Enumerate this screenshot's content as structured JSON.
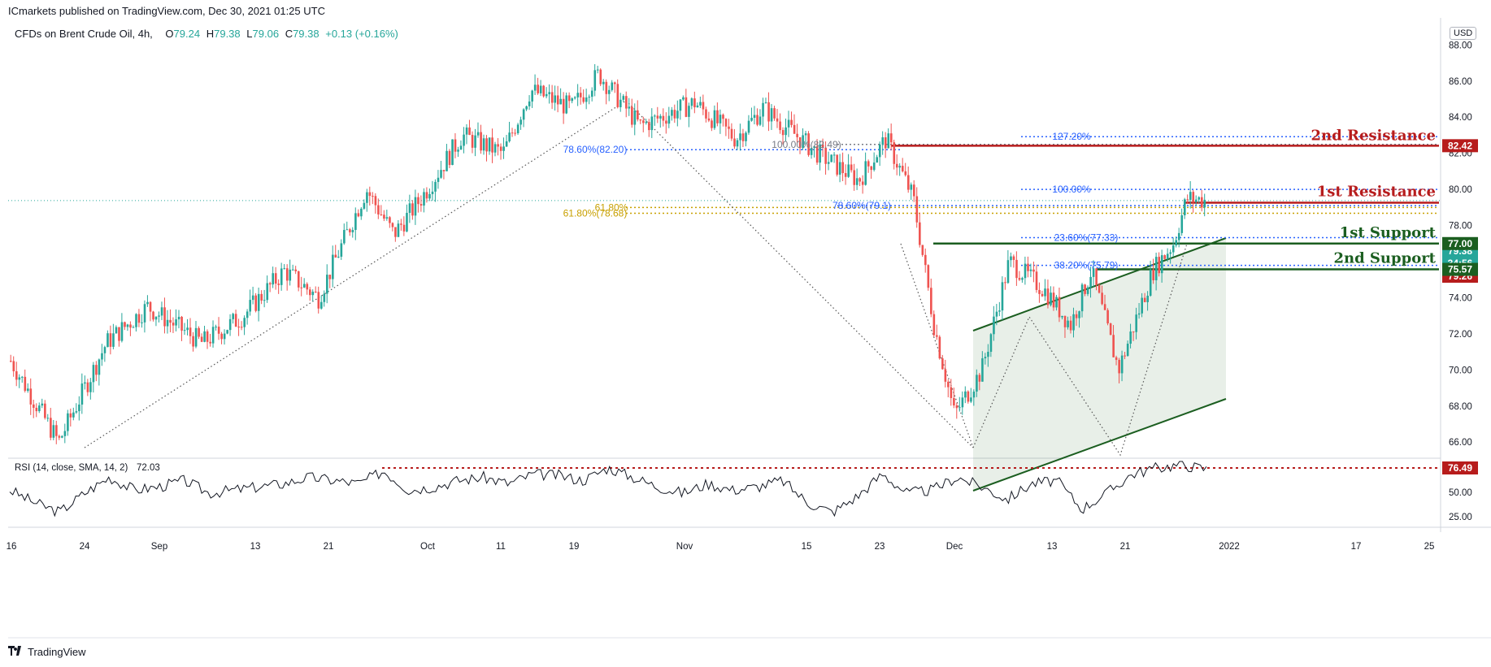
{
  "publisher": "ICmarkets published on TradingView.com, Dec 30, 2021 01:25 UTC",
  "legend": {
    "symbol": "CFDs on Brent Crude Oil, 4h,",
    "o": "79.24",
    "h": "79.38",
    "l": "79.06",
    "c": "79.38",
    "change": "+0.13 (+0.16%)"
  },
  "currency": "USD",
  "footer": "TradingView",
  "colors": {
    "up": "#26a69a",
    "down": "#ef5350",
    "resistance": "#b71c1c",
    "support": "#1b5e20",
    "fib_blue": "#2962ff",
    "fib_gold": "#c8a000"
  },
  "chart_data": {
    "type": "candlestick",
    "ylim": [
      65.2,
      89.5
    ],
    "y_ticks": [
      "88.00",
      "86.00",
      "84.00",
      "82.00",
      "80.00",
      "78.00",
      "76.00",
      "74.00",
      "72.00",
      "70.00",
      "68.00",
      "66.00"
    ],
    "x_ticks": [
      "16",
      "24",
      "Sep",
      "13",
      "21",
      "Oct",
      "11",
      "19",
      "Nov",
      "15",
      "23",
      "Dec",
      "13",
      "21",
      "2022",
      "17",
      "25"
    ],
    "price_path": [
      [
        0,
        70.5
      ],
      [
        0.035,
        66.0
      ],
      [
        0.07,
        71.5
      ],
      [
        0.1,
        73.5
      ],
      [
        0.14,
        71.5
      ],
      [
        0.17,
        73.0
      ],
      [
        0.2,
        75.5
      ],
      [
        0.225,
        74.0
      ],
      [
        0.26,
        80.0
      ],
      [
        0.28,
        77.5
      ],
      [
        0.3,
        79.5
      ],
      [
        0.33,
        83.0
      ],
      [
        0.36,
        82.0
      ],
      [
        0.38,
        85.5
      ],
      [
        0.41,
        84.5
      ],
      [
        0.43,
        86.4
      ],
      [
        0.46,
        83.5
      ],
      [
        0.5,
        84.8
      ],
      [
        0.53,
        82.8
      ],
      [
        0.55,
        84.5
      ],
      [
        0.59,
        82.0
      ],
      [
        0.62,
        80.5
      ],
      [
        0.64,
        82.8
      ],
      [
        0.66,
        79.5
      ],
      [
        0.675,
        72.5
      ],
      [
        0.69,
        67.5
      ],
      [
        0.71,
        70.0
      ],
      [
        0.73,
        76.0
      ],
      [
        0.755,
        74.5
      ],
      [
        0.775,
        72.5
      ],
      [
        0.79,
        75.5
      ],
      [
        0.81,
        70.0
      ],
      [
        0.835,
        75.5
      ],
      [
        0.85,
        77.0
      ],
      [
        0.86,
        79.5
      ],
      [
        0.875,
        79.38
      ]
    ],
    "annotations": {
      "rsi_label": "RSI (14, close, SMA, 14, 2)",
      "rsi_value": "72.03",
      "resistance_2": "2nd Resistance",
      "resistance_1": "1st Resistance",
      "support_1": "1st Support",
      "support_2": "2nd Support"
    },
    "price_tags": [
      {
        "value": "82.42",
        "color": "#b71c1c"
      },
      {
        "value": "79.38",
        "color": "#26a69a"
      },
      {
        "value": "34:56",
        "color": "#26a69a"
      },
      {
        "value": "79.26",
        "color": "#b71c1c"
      },
      {
        "value": "77.00",
        "color": "#1b5e20"
      },
      {
        "value": "75.57",
        "color": "#1b5e20"
      }
    ],
    "fib_labels": [
      {
        "text": "127.20%",
        "color": "#2962ff"
      },
      {
        "text": "100.00%",
        "color": "#2962ff"
      },
      {
        "text": "23.60%(77.33)",
        "color": "#2962ff"
      },
      {
        "text": "38.20%(75.79)",
        "color": "#2962ff"
      },
      {
        "text": "78.60%(82.20)",
        "color": "#2962ff"
      },
      {
        "text": "100.00%(82.49)",
        "color": "#787b86"
      },
      {
        "text": "78.60%(79.1)",
        "color": "#2962ff"
      },
      {
        "text": "61.80%",
        "color": "#c8a000"
      },
      {
        "text": "61.80%(78.68)",
        "color": "#c8a000"
      }
    ],
    "rsi": {
      "ticks": [
        "50.00",
        "25.00"
      ],
      "level_tag": "76.49",
      "path": [
        0.55,
        0.35,
        0.2,
        0.5,
        0.75,
        0.55,
        0.6,
        0.7,
        0.5,
        0.55,
        0.6,
        0.65,
        0.75,
        0.7,
        0.65,
        0.85,
        0.55,
        0.6,
        0.7,
        0.75,
        0.65,
        0.8,
        0.78,
        0.7,
        0.9,
        0.75,
        0.6,
        0.5,
        0.65,
        0.55,
        0.6,
        0.7,
        0.35,
        0.2,
        0.45,
        0.8,
        0.5,
        0.55,
        0.75,
        0.6,
        0.4,
        0.65,
        0.7,
        0.25,
        0.5,
        0.8,
        0.9,
        0.95,
        0.88
      ]
    }
  }
}
